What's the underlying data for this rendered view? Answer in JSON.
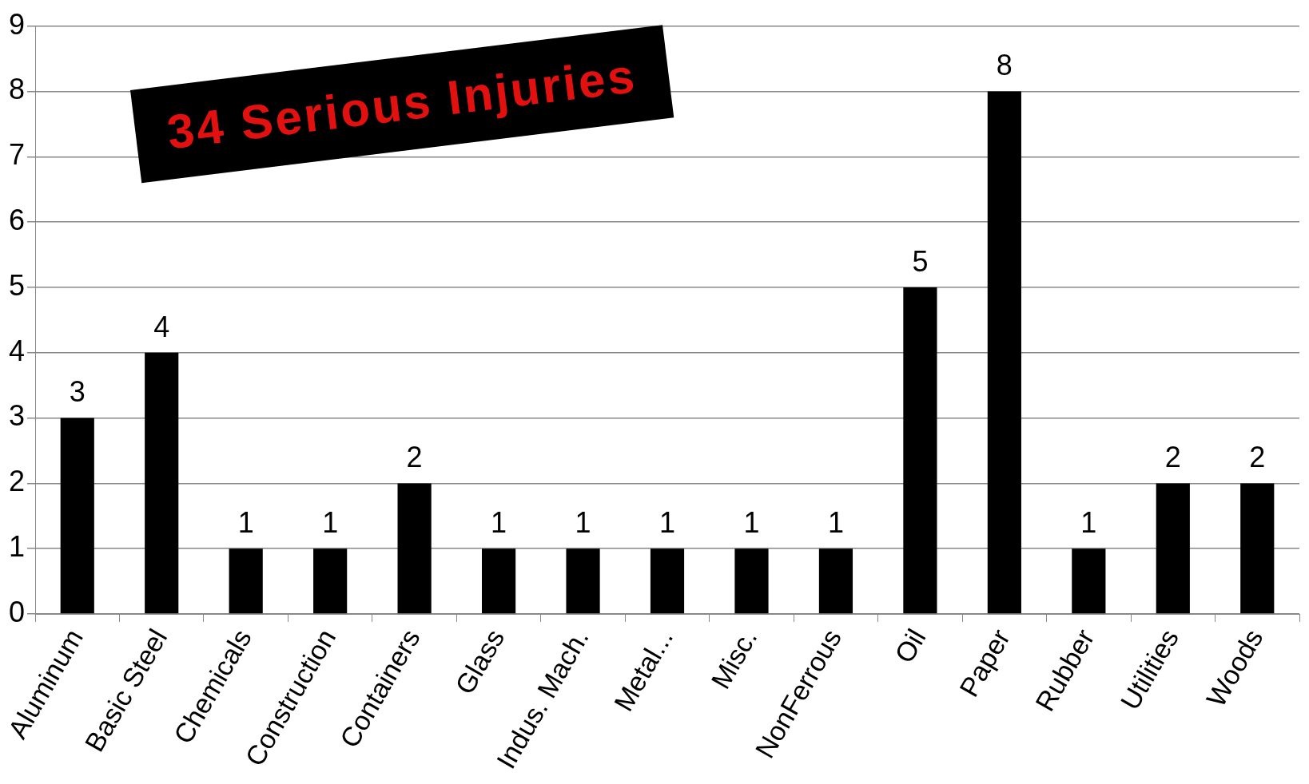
{
  "chart_data": {
    "type": "bar",
    "title": "34 Serious Injuries",
    "categories": [
      "Aluminum",
      "Basic Steel",
      "Chemicals",
      "Construction",
      "Containers",
      "Glass",
      "Indus. Mach.",
      "Metal...",
      "Misc.",
      "NonFerrous",
      "Oil",
      "Paper",
      "Rubber",
      "Utilities",
      "Woods"
    ],
    "values": [
      3,
      4,
      1,
      1,
      2,
      1,
      1,
      1,
      1,
      1,
      5,
      8,
      1,
      2,
      2
    ],
    "color": "#000000",
    "ylim": [
      0,
      9
    ],
    "yticks": [
      0,
      1,
      2,
      3,
      4,
      5,
      6,
      7,
      8,
      9
    ],
    "grid": "y",
    "data_labels": true
  }
}
